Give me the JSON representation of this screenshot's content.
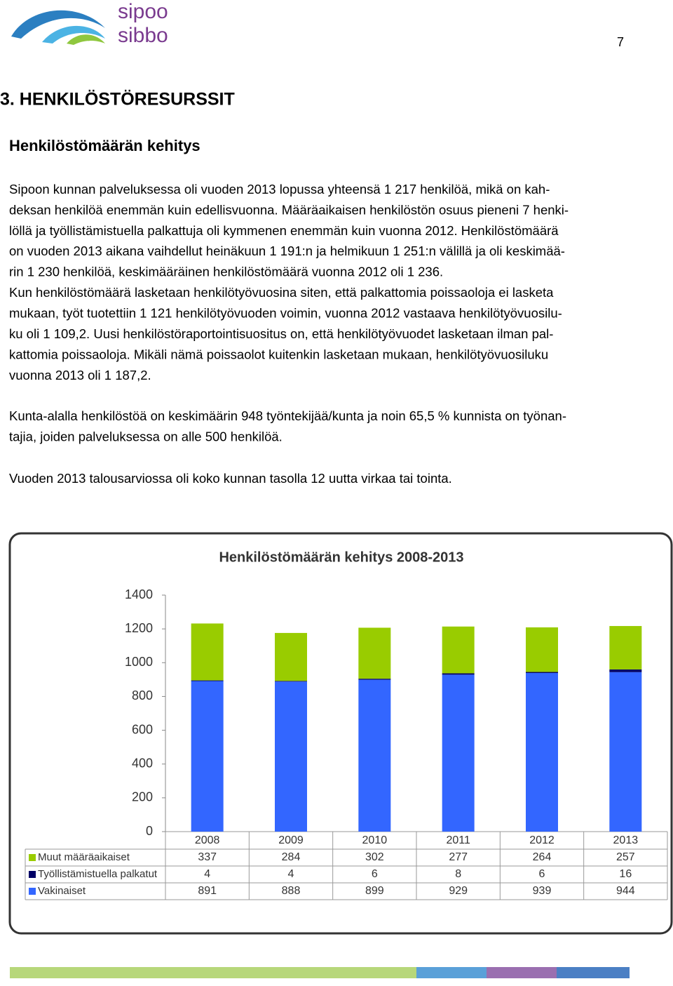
{
  "logo": {
    "line1": "sipoo",
    "line2": "sibbo"
  },
  "page_number": "7",
  "heading": "3. HENKILÖSTÖRESURSSIT",
  "subheading": "Henkilöstömäärän kehitys",
  "paragraphs": [
    [
      "Sipoon kunnan palveluksessa oli vuoden 2013 lopussa yhteensä 1 217 henkilöä, mikä on kah-",
      "deksan henkilöä enemmän kuin edellisvuonna. Määräaikaisen henkilöstön osuus pieneni 7 henki-",
      "löllä ja työllistämistuella palkattuja oli kymmenen enemmän kuin vuonna 2012. Henkilöstömäärä",
      "on vuoden 2013 aikana vaihdellut heinäkuun 1 191:n ja helmikuun 1 251:n välillä ja oli keskimää-",
      "rin 1 230 henkilöä, keskimääräinen henkilöstömäärä vuonna 2012 oli 1 236.",
      "Kun henkilöstömäärä lasketaan henkilötyövuosina siten, että palkattomia poissaoloja ei lasketa",
      "mukaan, työt tuotettiin 1 121 henkilötyövuoden voimin, vuonna 2012 vastaava henkilötyövuosilu-",
      "ku oli 1 109,2. Uusi henkilöstöraportointisuositus on, että henkilötyövuodet lasketaan ilman pal-",
      "kattomia poissaoloja. Mikäli nämä poissaolot kuitenkin lasketaan mukaan, henkilötyövuosiluku",
      "vuonna 2013 oli 1 187,2."
    ],
    [
      "Kunta-alalla henkilöstöä on keskimäärin 948 työntekijää/kunta ja noin 65,5 % kunnista on työnan-",
      "tajia, joiden palveluksessa on alle 500 henkilöä."
    ],
    [
      "Vuoden 2013 talousarviossa oli koko kunnan tasolla 12 uutta virkaa tai tointa."
    ]
  ],
  "chart_data": {
    "type": "stacked-bar",
    "title": "Henkilöstömäärän kehitys 2008-2013",
    "categories": [
      "2008",
      "2009",
      "2010",
      "2011",
      "2012",
      "2013"
    ],
    "series": [
      {
        "name": "Muut määräaikaiset",
        "color": "#99cc00",
        "values": [
          337,
          284,
          302,
          277,
          264,
          257
        ]
      },
      {
        "name": "Työllistämistuella palkatut",
        "color": "#000066",
        "values": [
          4,
          4,
          6,
          8,
          6,
          16
        ]
      },
      {
        "name": "Vakinaiset",
        "color": "#3366ff",
        "values": [
          891,
          888,
          899,
          929,
          939,
          944
        ]
      }
    ],
    "ylim": [
      0,
      1400
    ],
    "yticks": [
      0,
      200,
      400,
      600,
      800,
      1000,
      1200,
      1400
    ]
  }
}
